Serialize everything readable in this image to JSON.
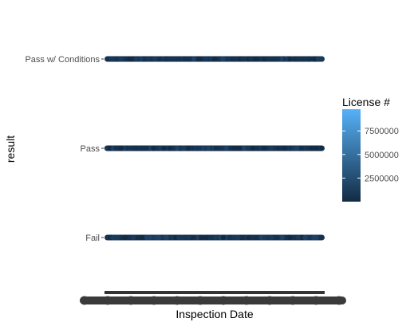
{
  "chart_data": {
    "type": "scatter",
    "title": "",
    "xlabel": "Inspection Date",
    "ylabel": "result",
    "categories": [
      "Fail",
      "Pass",
      "Pass w/ Conditions"
    ],
    "series": [
      {
        "category": "Pass w/ Conditions",
        "color_dominant": "#16324e"
      },
      {
        "category": "Pass",
        "color_dominant": "#16324e"
      },
      {
        "category": "Fail",
        "color_dominant": "#16324e"
      }
    ],
    "x_tick_labels_overplotted": true,
    "grid": false,
    "legend": {
      "title": "License #",
      "type": "colorbar",
      "position": "right",
      "range": [
        0,
        9800000
      ],
      "ticks": [
        {
          "value": 2500000,
          "label": "2500000"
        },
        {
          "value": 5000000,
          "label": "5000000"
        },
        {
          "value": 7500000,
          "label": "7500000"
        }
      ],
      "low_color": "#132b43",
      "high_color": "#56b1f7"
    }
  }
}
